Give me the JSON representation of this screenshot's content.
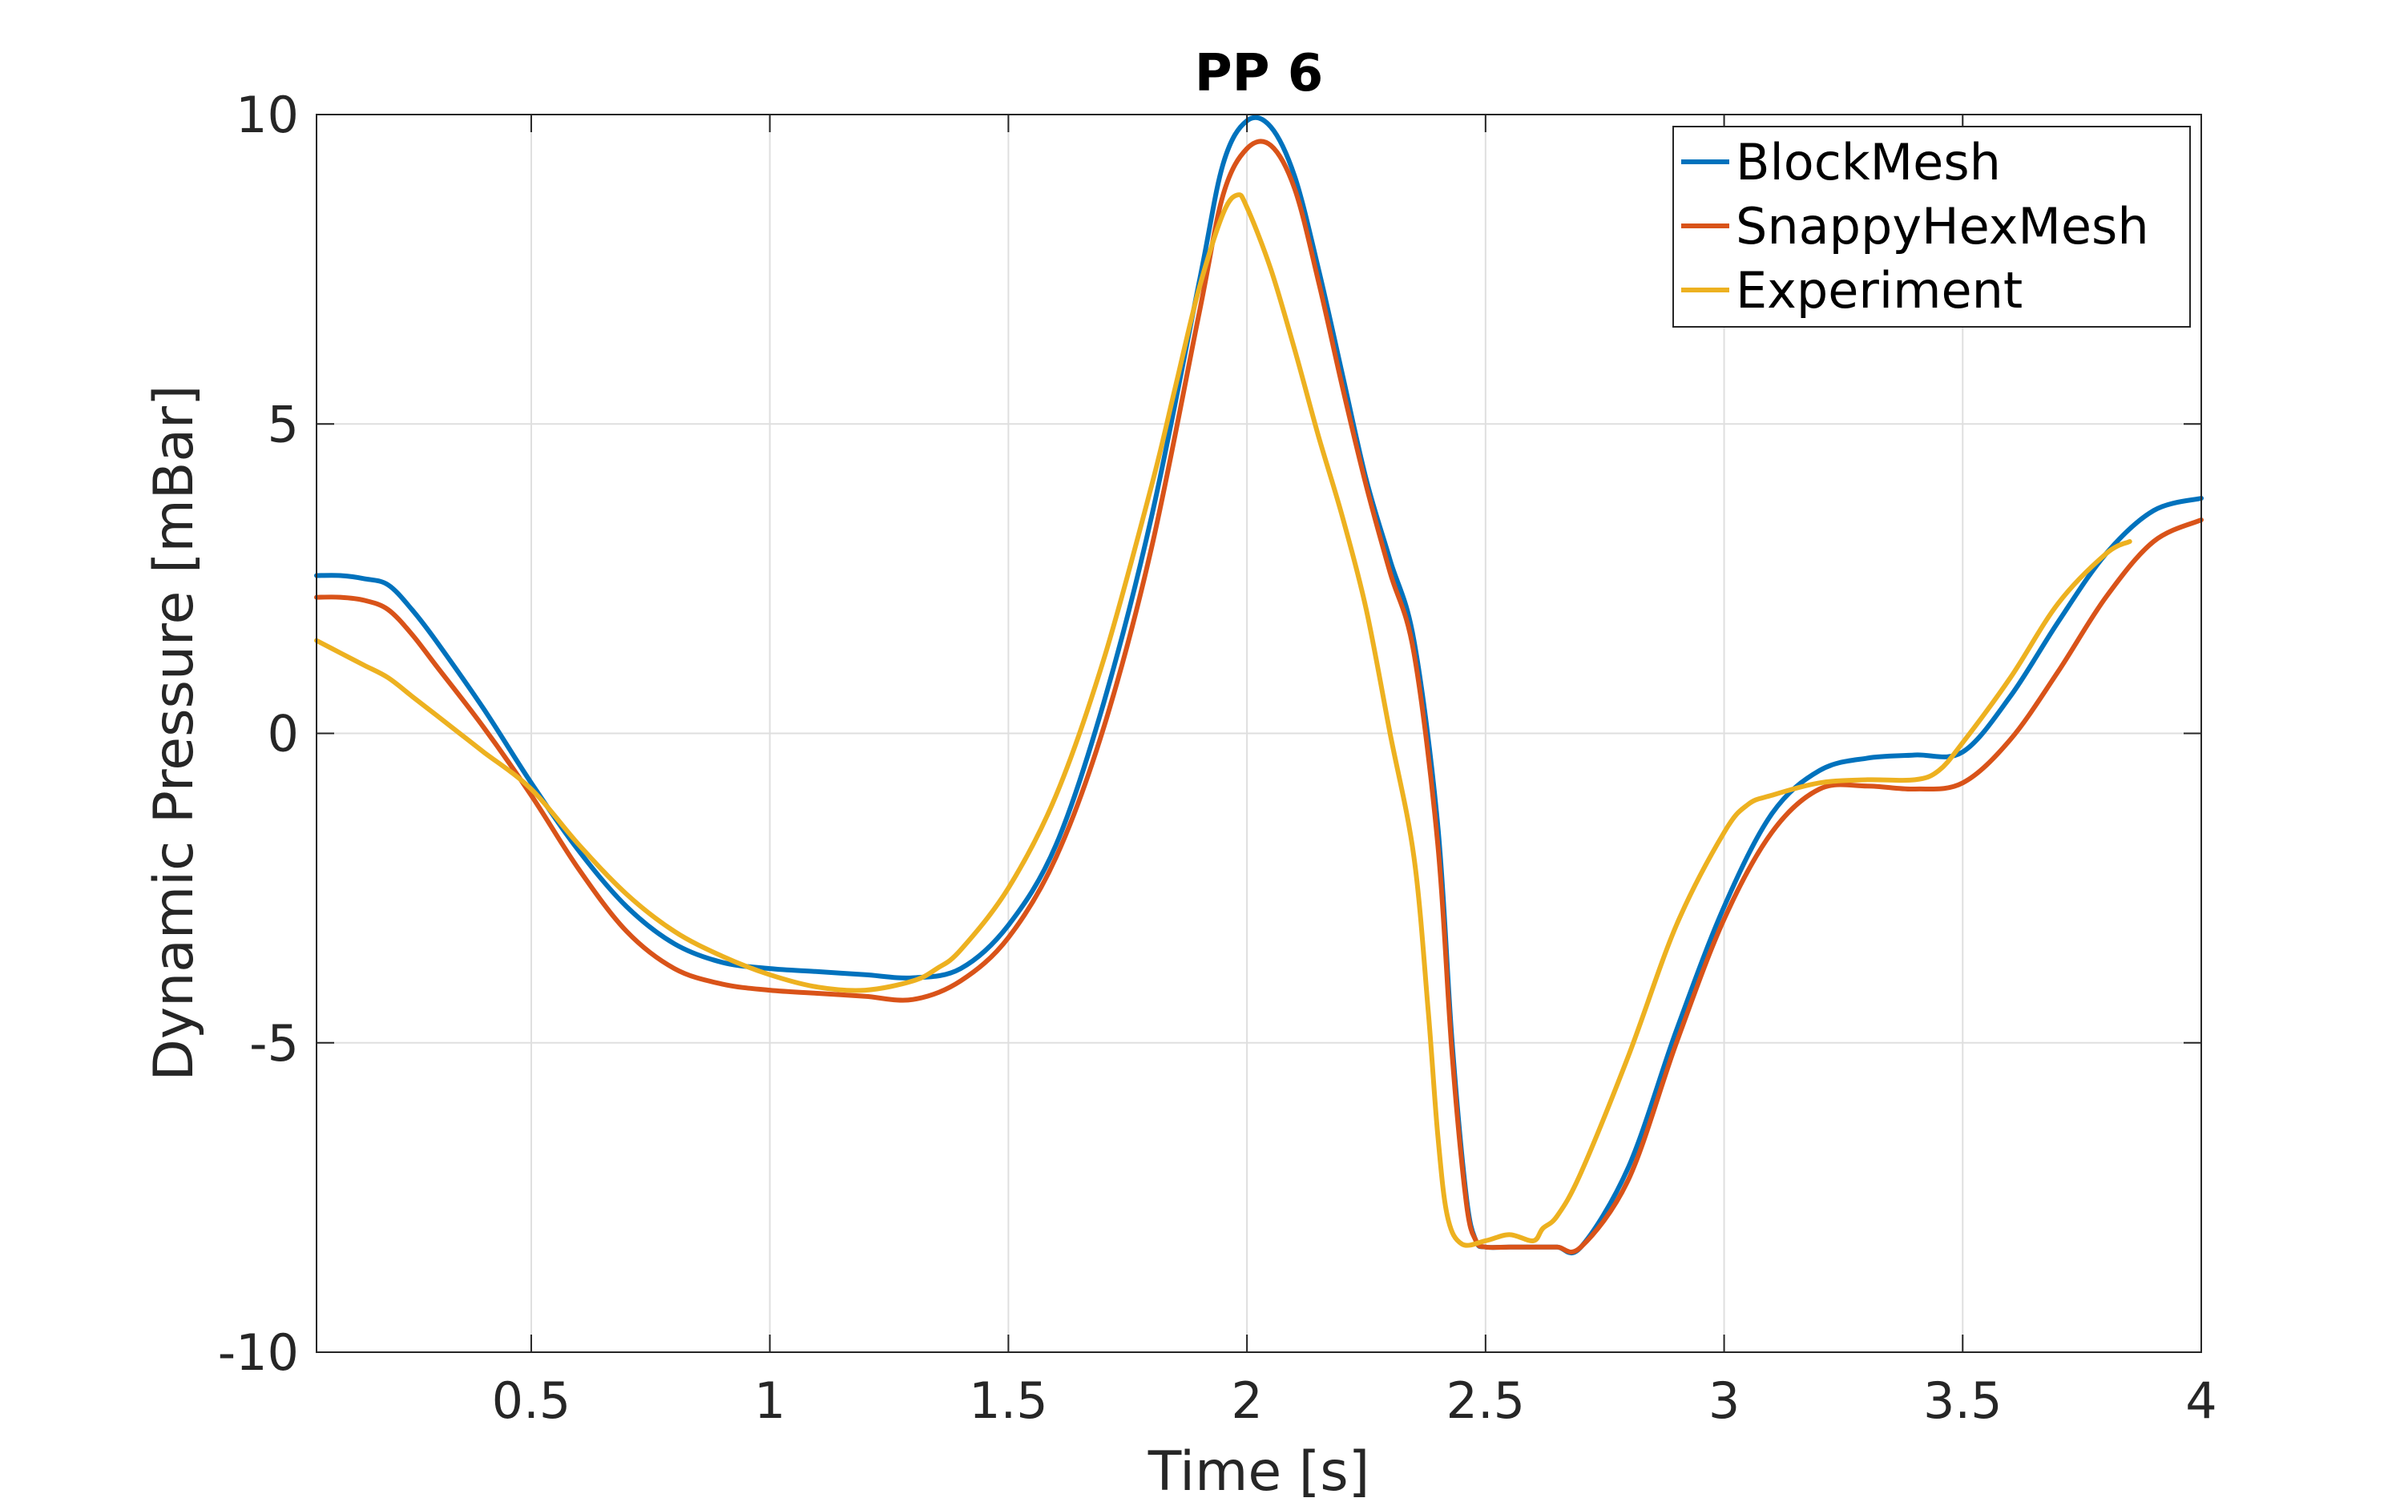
{
  "chart_data": {
    "type": "line",
    "title": "PP 6",
    "xlabel": "Time [s]",
    "ylabel": "Dynamic Pressure [mBar]",
    "xlim": [
      0.05,
      4
    ],
    "ylim": [
      -10,
      10
    ],
    "xticks": [
      0.5,
      1,
      1.5,
      2,
      2.5,
      3,
      3.5,
      4
    ],
    "xtick_labels": [
      "0.5",
      "1",
      "1.5",
      "2",
      "2.5",
      "3",
      "3.5",
      "4"
    ],
    "yticks": [
      -10,
      -5,
      0,
      5,
      10
    ],
    "ytick_labels": [
      "-10",
      "-5",
      "0",
      "5",
      "10"
    ],
    "grid": true,
    "legend_position": "top-right",
    "series": [
      {
        "name": "BlockMesh",
        "color": "#0072BD",
        "x": [
          0.05,
          0.1,
          0.15,
          0.2,
          0.25,
          0.3,
          0.4,
          0.5,
          0.6,
          0.7,
          0.8,
          0.9,
          1.0,
          1.1,
          1.2,
          1.3,
          1.4,
          1.5,
          1.6,
          1.7,
          1.8,
          1.9,
          1.95,
          2.0,
          2.05,
          2.1,
          2.15,
          2.2,
          2.25,
          2.3,
          2.35,
          2.4,
          2.43,
          2.46,
          2.48,
          2.5,
          2.55,
          2.6,
          2.65,
          2.7,
          2.8,
          2.9,
          3.0,
          3.1,
          3.2,
          3.3,
          3.4,
          3.5,
          3.6,
          3.7,
          3.8,
          3.9,
          4.0
        ],
        "y": [
          2.55,
          2.55,
          2.5,
          2.4,
          2.0,
          1.5,
          0.4,
          -0.8,
          -1.9,
          -2.8,
          -3.4,
          -3.7,
          -3.8,
          -3.85,
          -3.9,
          -3.95,
          -3.8,
          -3.1,
          -1.8,
          0.5,
          3.5,
          7.3,
          9.2,
          9.9,
          9.8,
          9.0,
          7.5,
          5.8,
          4.1,
          2.8,
          1.5,
          -1.5,
          -5.0,
          -7.5,
          -8.2,
          -8.3,
          -8.3,
          -8.3,
          -8.3,
          -8.3,
          -7.0,
          -4.8,
          -2.8,
          -1.3,
          -0.6,
          -0.4,
          -0.35,
          -0.3,
          0.6,
          1.8,
          2.9,
          3.6,
          3.8
        ]
      },
      {
        "name": "SnappyHexMesh",
        "color": "#D95319",
        "x": [
          0.05,
          0.1,
          0.15,
          0.2,
          0.25,
          0.3,
          0.4,
          0.5,
          0.6,
          0.7,
          0.8,
          0.9,
          1.0,
          1.1,
          1.2,
          1.3,
          1.4,
          1.5,
          1.6,
          1.7,
          1.8,
          1.9,
          1.95,
          2.0,
          2.05,
          2.1,
          2.15,
          2.2,
          2.25,
          2.3,
          2.35,
          2.4,
          2.43,
          2.46,
          2.48,
          2.5,
          2.55,
          2.6,
          2.65,
          2.7,
          2.8,
          2.9,
          3.0,
          3.1,
          3.2,
          3.3,
          3.4,
          3.5,
          3.6,
          3.7,
          3.8,
          3.9,
          4.0
        ],
        "y": [
          2.2,
          2.2,
          2.15,
          2.0,
          1.6,
          1.1,
          0.1,
          -1.0,
          -2.2,
          -3.2,
          -3.8,
          -4.05,
          -4.15,
          -4.2,
          -4.25,
          -4.3,
          -4.0,
          -3.3,
          -2.0,
          0.1,
          3.0,
          6.8,
          8.7,
          9.45,
          9.5,
          8.8,
          7.3,
          5.6,
          4.0,
          2.6,
          1.3,
          -1.8,
          -5.2,
          -7.6,
          -8.2,
          -8.3,
          -8.3,
          -8.3,
          -8.3,
          -8.3,
          -7.2,
          -5.0,
          -3.0,
          -1.6,
          -0.9,
          -0.85,
          -0.9,
          -0.8,
          -0.1,
          1.0,
          2.2,
          3.1,
          3.45
        ]
      },
      {
        "name": "Experiment",
        "color": "#EDB120",
        "x": [
          0.05,
          0.1,
          0.15,
          0.2,
          0.25,
          0.3,
          0.35,
          0.4,
          0.5,
          0.6,
          0.7,
          0.8,
          0.9,
          1.0,
          1.1,
          1.2,
          1.3,
          1.35,
          1.4,
          1.5,
          1.6,
          1.7,
          1.8,
          1.85,
          1.9,
          1.95,
          1.98,
          2.0,
          2.05,
          2.1,
          2.15,
          2.2,
          2.25,
          2.3,
          2.35,
          2.38,
          2.4,
          2.42,
          2.45,
          2.5,
          2.55,
          2.6,
          2.62,
          2.65,
          2.7,
          2.8,
          2.9,
          3.0,
          3.05,
          3.1,
          3.2,
          3.3,
          3.4,
          3.45,
          3.5,
          3.6,
          3.7,
          3.8,
          3.85
        ],
        "y": [
          1.5,
          1.3,
          1.1,
          0.9,
          0.6,
          0.3,
          0.0,
          -0.3,
          -0.9,
          -1.8,
          -2.6,
          -3.2,
          -3.6,
          -3.9,
          -4.1,
          -4.15,
          -4.0,
          -3.8,
          -3.5,
          -2.5,
          -1.0,
          1.2,
          4.0,
          5.6,
          7.2,
          8.4,
          8.7,
          8.5,
          7.5,
          6.2,
          4.8,
          3.5,
          2.0,
          0.0,
          -2.0,
          -4.5,
          -6.5,
          -7.8,
          -8.25,
          -8.2,
          -8.1,
          -8.2,
          -8.0,
          -7.8,
          -7.1,
          -5.2,
          -3.1,
          -1.6,
          -1.15,
          -1.0,
          -0.8,
          -0.75,
          -0.75,
          -0.6,
          -0.15,
          0.9,
          2.1,
          2.9,
          3.1
        ]
      }
    ]
  }
}
